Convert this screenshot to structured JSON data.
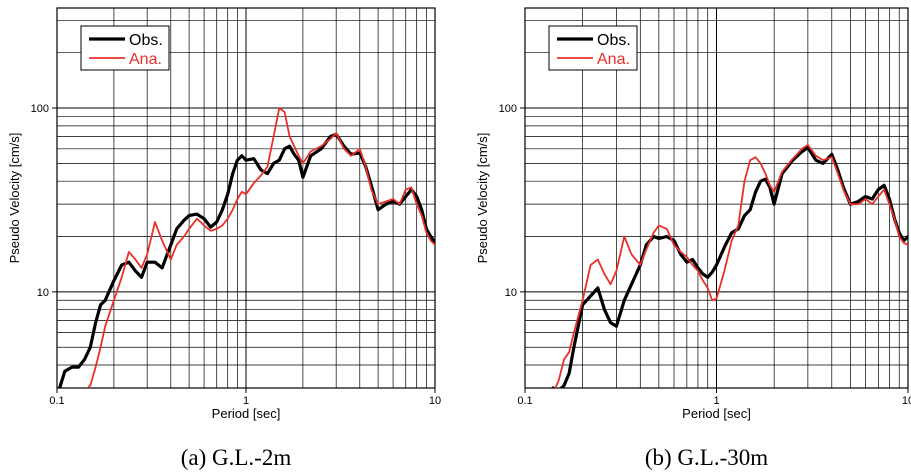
{
  "chart_data": [
    {
      "type": "line",
      "xscale": "log",
      "yscale": "log",
      "xlim": [
        0.1,
        10
      ],
      "ylim": [
        3,
        350
      ],
      "xlabel": "Period [sec]",
      "ylabel": "Pseudo Velocity [cm/s]",
      "x_tick_labels": [
        "0.1",
        "1",
        "10"
      ],
      "y_tick_labels": [
        "10",
        "100"
      ],
      "x_ticks": [
        0.1,
        1,
        10
      ],
      "y_ticks": [
        10,
        100
      ],
      "grid": true,
      "legend": "top-left",
      "caption": "(a) G.L.-2m",
      "series": [
        {
          "name": "Obs.",
          "color": "#000000",
          "x": [
            0.1,
            0.11,
            0.12,
            0.13,
            0.14,
            0.15,
            0.16,
            0.17,
            0.18,
            0.2,
            0.22,
            0.24,
            0.26,
            0.28,
            0.3,
            0.33,
            0.36,
            0.4,
            0.43,
            0.47,
            0.5,
            0.55,
            0.6,
            0.65,
            0.7,
            0.75,
            0.8,
            0.85,
            0.9,
            0.95,
            1.0,
            1.1,
            1.2,
            1.3,
            1.4,
            1.5,
            1.6,
            1.7,
            1.8,
            1.9,
            2.0,
            2.2,
            2.5,
            2.8,
            3.0,
            3.3,
            3.6,
            4.0,
            4.3,
            4.6,
            5.0,
            5.5,
            6.0,
            6.5,
            7.0,
            7.5,
            8.0,
            8.5,
            9.0,
            9.5,
            10.0
          ],
          "y": [
            2.7,
            3.7,
            3.9,
            3.9,
            4.3,
            5.0,
            6.8,
            8.5,
            9.0,
            11.5,
            14.0,
            14.5,
            13.0,
            12.0,
            14.5,
            14.5,
            13.5,
            18.0,
            22.0,
            24.5,
            26.0,
            26.5,
            25.0,
            22.5,
            24.0,
            28.0,
            34.0,
            44.0,
            52.0,
            55.0,
            52.0,
            53.0,
            46.0,
            44.0,
            50.0,
            52.0,
            60.0,
            62.0,
            56.0,
            52.0,
            42.0,
            55.0,
            60.0,
            70.0,
            72.0,
            62.0,
            56.0,
            57.0,
            48.0,
            38.0,
            28.0,
            30.0,
            31.0,
            30.0,
            33.0,
            36.0,
            33.0,
            28.0,
            22.0,
            20.0,
            18.5
          ]
        },
        {
          "name": "Ana.",
          "color": "#e8302a",
          "x": [
            0.14,
            0.15,
            0.16,
            0.17,
            0.18,
            0.2,
            0.22,
            0.24,
            0.26,
            0.28,
            0.3,
            0.33,
            0.36,
            0.4,
            0.43,
            0.47,
            0.5,
            0.55,
            0.6,
            0.65,
            0.7,
            0.75,
            0.8,
            0.85,
            0.9,
            0.95,
            1.0,
            1.1,
            1.2,
            1.3,
            1.4,
            1.5,
            1.6,
            1.7,
            1.8,
            1.9,
            2.0,
            2.2,
            2.5,
            2.8,
            3.0,
            3.3,
            3.6,
            4.0,
            4.3,
            4.6,
            5.0,
            5.5,
            6.0,
            6.5,
            7.0,
            7.5,
            8.0,
            8.5,
            9.0,
            9.5,
            10.0
          ],
          "y": [
            2.9,
            3.1,
            3.9,
            5.0,
            6.5,
            9.0,
            12.0,
            16.5,
            15.0,
            13.5,
            16.0,
            24.0,
            19.0,
            15.0,
            18.0,
            20.0,
            22.0,
            25.0,
            23.0,
            21.5,
            22.0,
            23.0,
            25.0,
            28.0,
            32.0,
            35.0,
            34.0,
            39.0,
            43.0,
            48.0,
            70.0,
            100.0,
            95.0,
            70.0,
            62.0,
            55.0,
            50.0,
            58.0,
            62.0,
            68.0,
            73.0,
            60.0,
            55.0,
            60.0,
            48.0,
            36.0,
            30.0,
            31.0,
            32.0,
            30.0,
            36.0,
            37.0,
            30.0,
            26.0,
            21.0,
            19.0,
            18.0
          ]
        }
      ]
    },
    {
      "type": "line",
      "xscale": "log",
      "yscale": "log",
      "xlim": [
        0.1,
        10
      ],
      "ylim": [
        3,
        350
      ],
      "xlabel": "Period [sec]",
      "ylabel": "Pseudo Velocity [cm/s]",
      "x_tick_labels": [
        "0.1",
        "1",
        "10"
      ],
      "y_tick_labels": [
        "10",
        "100"
      ],
      "x_ticks": [
        0.1,
        1,
        10
      ],
      "y_ticks": [
        10,
        100
      ],
      "grid": true,
      "legend": "top-left",
      "caption": "(b) G.L.-30m",
      "series": [
        {
          "name": "Obs.",
          "color": "#000000",
          "x": [
            0.14,
            0.15,
            0.16,
            0.17,
            0.18,
            0.2,
            0.22,
            0.24,
            0.26,
            0.28,
            0.3,
            0.33,
            0.36,
            0.4,
            0.43,
            0.47,
            0.5,
            0.55,
            0.6,
            0.65,
            0.7,
            0.75,
            0.8,
            0.85,
            0.9,
            0.95,
            1.0,
            1.1,
            1.2,
            1.3,
            1.4,
            1.5,
            1.6,
            1.7,
            1.8,
            1.9,
            2.0,
            2.2,
            2.5,
            2.8,
            3.0,
            3.3,
            3.6,
            4.0,
            4.3,
            4.6,
            5.0,
            5.5,
            6.0,
            6.5,
            7.0,
            7.5,
            8.0,
            8.5,
            9.0,
            9.5,
            10.0
          ],
          "y": [
            3.0,
            2.9,
            3.1,
            3.6,
            5.0,
            8.5,
            9.5,
            10.5,
            8.0,
            6.8,
            6.5,
            9.0,
            11.0,
            14.0,
            18.0,
            20.0,
            19.5,
            20.0,
            19.0,
            16.0,
            14.5,
            15.0,
            13.5,
            12.5,
            12.0,
            12.8,
            14.0,
            17.5,
            21.0,
            22.0,
            26.0,
            28.0,
            35.0,
            40.0,
            41.0,
            37.0,
            30.0,
            44.0,
            52.0,
            58.0,
            61.0,
            52.0,
            50.0,
            56.0,
            46.0,
            37.0,
            30.0,
            31.0,
            33.0,
            32.0,
            36.0,
            38.0,
            32.0,
            25.0,
            21.0,
            19.0,
            20.0
          ]
        },
        {
          "name": "Ana.",
          "color": "#e8302a",
          "x": [
            0.14,
            0.15,
            0.16,
            0.17,
            0.18,
            0.2,
            0.22,
            0.24,
            0.26,
            0.28,
            0.3,
            0.33,
            0.36,
            0.4,
            0.43,
            0.47,
            0.5,
            0.55,
            0.6,
            0.65,
            0.7,
            0.75,
            0.8,
            0.85,
            0.9,
            0.95,
            1.0,
            1.1,
            1.2,
            1.3,
            1.4,
            1.5,
            1.6,
            1.7,
            1.8,
            1.9,
            2.0,
            2.2,
            2.5,
            2.8,
            3.0,
            3.3,
            3.6,
            4.0,
            4.3,
            4.6,
            5.0,
            5.5,
            6.0,
            6.5,
            7.0,
            7.5,
            8.0,
            8.5,
            9.0,
            9.5,
            10.0
          ],
          "y": [
            2.8,
            3.3,
            4.3,
            4.7,
            6.0,
            9.0,
            14.0,
            15.0,
            12.5,
            11.0,
            13.0,
            20.0,
            16.0,
            14.0,
            17.0,
            21.0,
            23.0,
            22.0,
            18.0,
            16.5,
            15.5,
            14.0,
            13.0,
            11.5,
            10.5,
            9.0,
            9.2,
            13.0,
            19.0,
            23.0,
            40.0,
            52.0,
            54.0,
            50.0,
            44.0,
            38.0,
            35.0,
            45.0,
            53.0,
            60.0,
            63.0,
            55.0,
            52.0,
            54.0,
            44.0,
            36.0,
            30.0,
            30.0,
            32.0,
            30.0,
            33.0,
            36.0,
            30.0,
            25.0,
            20.0,
            18.5,
            18.0
          ]
        }
      ]
    }
  ]
}
